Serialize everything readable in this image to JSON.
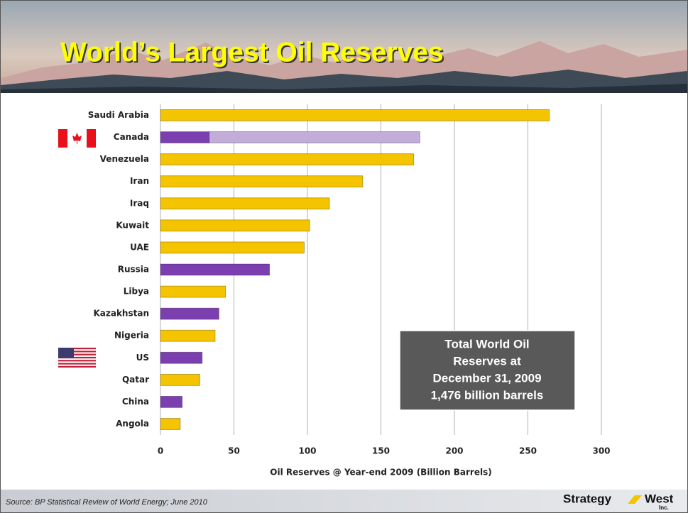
{
  "chart_data": {
    "type": "bar",
    "orientation": "horizontal",
    "title": "World’s Largest Oil Reserves",
    "categories": [
      "Saudi Arabia",
      "Canada",
      "Venezuela",
      "Iran",
      "Iraq",
      "Kuwait",
      "UAE",
      "Russia",
      "Libya",
      "Kazakhstan",
      "Nigeria",
      "US",
      "Qatar",
      "China",
      "Angola"
    ],
    "series": [
      {
        "values": [
          264.6,
          33.2,
          172.3,
          137.6,
          115,
          101.5,
          97.8,
          74.2,
          44.3,
          39.8,
          37.2,
          28.4,
          26.8,
          14.8,
          13.5
        ],
        "colors": [
          "#f5c400",
          "#7b3fb0",
          "#f5c400",
          "#f5c400",
          "#f5c400",
          "#f5c400",
          "#f5c400",
          "#7b3fb0",
          "#f5c400",
          "#7b3fb0",
          "#f5c400",
          "#7b3fb0",
          "#f5c400",
          "#7b3fb0",
          "#f5c400"
        ]
      },
      {
        "values": [
          null,
          143.3,
          null,
          null,
          null,
          null,
          null,
          null,
          null,
          null,
          null,
          null,
          null,
          null,
          null
        ],
        "color": "#c2add8"
      }
    ],
    "xlabel": "Oil Reserves @ Year-end 2009 (Billion Barrels)",
    "xlim": [
      0,
      300
    ],
    "xticks": [
      0,
      50,
      100,
      150,
      200,
      250,
      300
    ],
    "grid": true,
    "annotation": [
      "Total World Oil",
      "Reserves at",
      "December 31, 2009",
      "1,476 billion barrels"
    ]
  },
  "footer": {
    "source": "Source: BP Statistical Review of World Energy; June 2010",
    "logo": [
      "Strategy",
      "West",
      "Inc."
    ]
  }
}
